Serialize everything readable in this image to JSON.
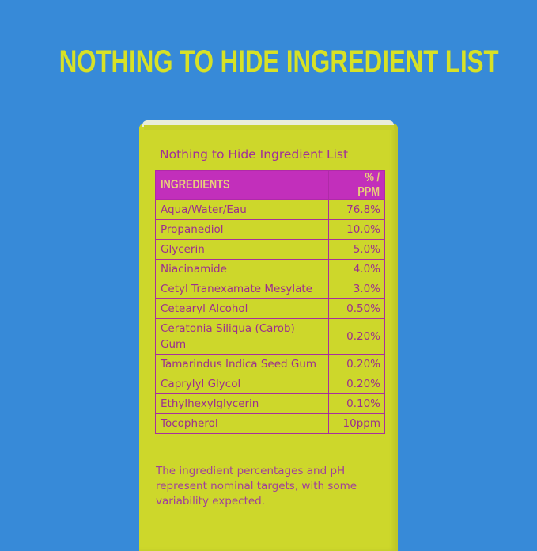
{
  "headline": "NOTHING TO HIDE INGREDIENT LIST",
  "box_title": "Nothing to Hide Ingredient List",
  "table": {
    "headers": [
      "INGREDIENTS",
      "% / PPM"
    ],
    "rows": [
      {
        "name": "Aqua/Water/Eau",
        "value": "76.8%"
      },
      {
        "name": "Propanediol",
        "value": "10.0%"
      },
      {
        "name": "Glycerin",
        "value": "5.0%"
      },
      {
        "name": "Niacinamide",
        "value": "4.0%"
      },
      {
        "name": "Cetyl Tranexamate Mesylate",
        "value": "3.0%"
      },
      {
        "name": "Cetearyl Alcohol",
        "value": "0.50%"
      },
      {
        "name": "Ceratonia Siliqua (Carob) Gum",
        "value": "0.20%"
      },
      {
        "name": "Tamarindus Indica Seed Gum",
        "value": "0.20%"
      },
      {
        "name": "Caprylyl Glycol",
        "value": "0.20%"
      },
      {
        "name": "Ethylhexylglycerin",
        "value": "0.10%"
      },
      {
        "name": "Tocopherol",
        "value": "10ppm"
      }
    ]
  },
  "note": "The ingredient percentages and pH represent nominal targets, with some variability expected.",
  "colors": {
    "background": "#378ad8",
    "box": "#cdd72b",
    "header": "#c22fbb",
    "text": "#9c2f8e",
    "headline": "#d7e126"
  }
}
